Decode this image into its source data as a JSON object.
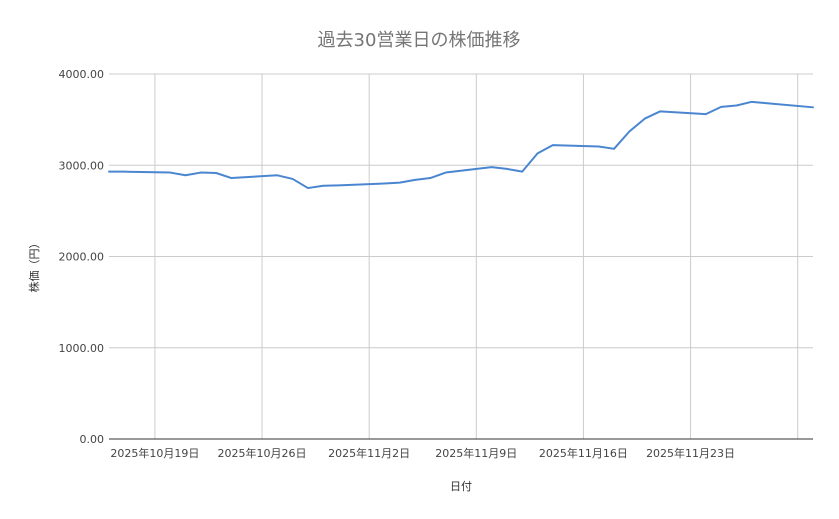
{
  "chart_data": {
    "type": "line",
    "title": "過去30営業日の株価推移",
    "xlabel": "日付",
    "ylabel": "株価（円）",
    "ylim": [
      0,
      4000
    ],
    "xlim": [
      "2025-10-16",
      "2025-12-01"
    ],
    "y_ticks": [
      "0.00",
      "1000.00",
      "2000.00",
      "3000.00",
      "4000.00"
    ],
    "x_ticks": [
      {
        "date": "2025-10-19",
        "label": "2025年10月19日"
      },
      {
        "date": "2025-10-26",
        "label": "2025年10月26日"
      },
      {
        "date": "2025-11-02",
        "label": "2025年11月2日"
      },
      {
        "date": "2025-11-09",
        "label": "2025年11月9日"
      },
      {
        "date": "2025-11-16",
        "label": "2025年11月16日"
      },
      {
        "date": "2025-11-23",
        "label": "2025年11月23日"
      }
    ],
    "grid": true,
    "series_color": "#4a86d0",
    "series": [
      {
        "x": [
          "2025-10-16",
          "2025-10-17",
          "2025-10-20",
          "2025-10-21",
          "2025-10-22",
          "2025-10-23",
          "2025-10-24",
          "2025-10-27",
          "2025-10-28",
          "2025-10-29",
          "2025-10-30",
          "2025-10-31",
          "2025-11-03",
          "2025-11-04",
          "2025-11-05",
          "2025-11-06",
          "2025-11-07",
          "2025-11-10",
          "2025-11-11",
          "2025-11-12",
          "2025-11-13",
          "2025-11-14",
          "2025-11-17",
          "2025-11-18",
          "2025-11-19",
          "2025-11-20",
          "2025-11-21",
          "2025-11-24",
          "2025-11-25",
          "2025-11-26",
          "2025-11-27",
          "2025-11-28",
          "2025-12-01"
        ],
        "y": [
          2930,
          2930,
          2920,
          2890,
          2920,
          2915,
          2860,
          2890,
          2850,
          2750,
          2775,
          2780,
          2800,
          2810,
          2840,
          2860,
          2920,
          2980,
          2960,
          2930,
          3130,
          3220,
          3205,
          3180,
          3370,
          3510,
          3590,
          3560,
          3640,
          3655,
          3695,
          3680,
          3635
        ]
      }
    ]
  }
}
